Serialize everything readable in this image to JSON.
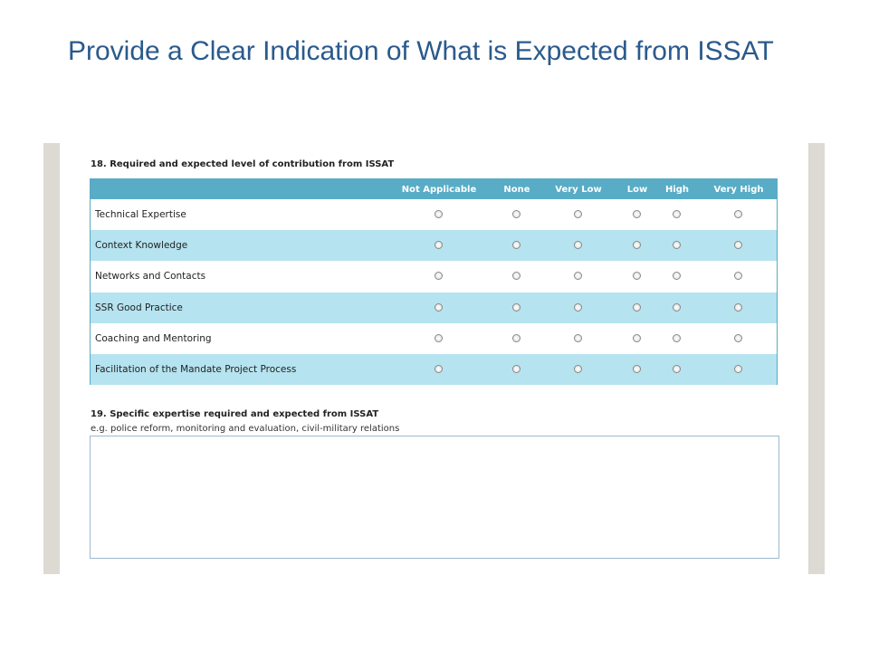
{
  "title": "Provide a Clear Indication of What is Expected from ISSAT",
  "q18": {
    "label": "18. Required and expected level of contribution from ISSAT",
    "columns": [
      "Not Applicable",
      "None",
      "Very Low",
      "Low",
      "High",
      "Very High"
    ],
    "rows": [
      "Technical Expertise",
      "Context Knowledge",
      "Networks and Contacts",
      "SSR Good Practice",
      "Coaching and Mentoring",
      "Facilitation of the Mandate Project Process"
    ]
  },
  "q19": {
    "label": "19. Specific expertise required and expected from ISSAT",
    "hint": "e.g. police reform, monitoring and evaluation, civil-military relations"
  }
}
